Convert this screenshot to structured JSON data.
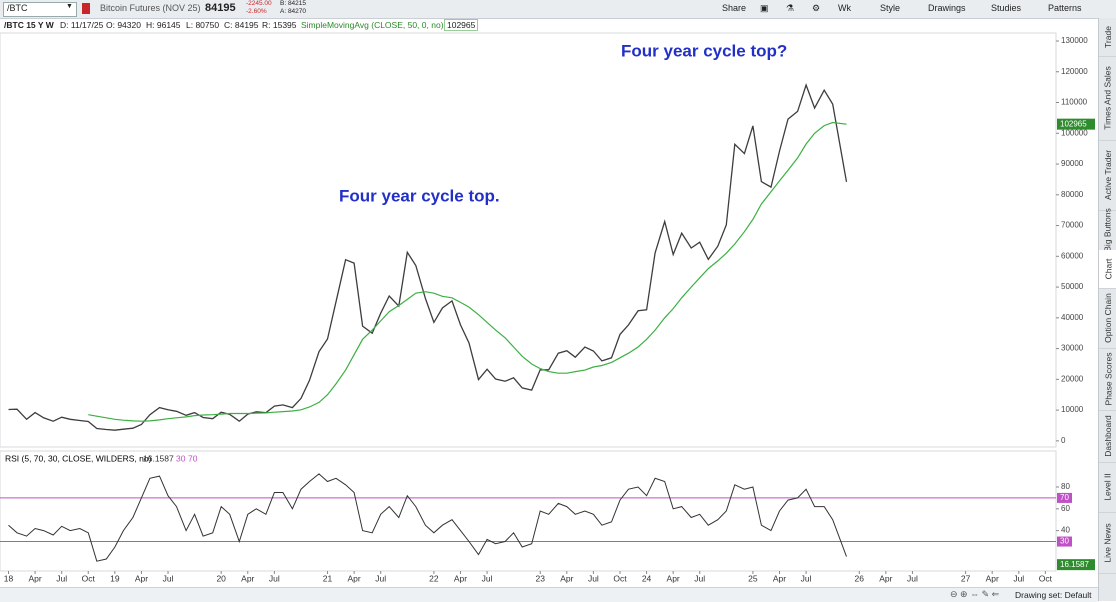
{
  "toolbar": {
    "symbol": "/BTC",
    "description": "Bitcoin Futures (NOV 25)",
    "change": "-2245.00",
    "change_pct": "-2.60%",
    "bid": "B: 84215",
    "ask": "A: 84270",
    "buttons": [
      "Share",
      "Wk",
      "Style",
      "Drawings",
      "Studies",
      "Patterns"
    ]
  },
  "header": {
    "date": "D: 11/17/25",
    "open": "O: 94320",
    "high": "H: 96145",
    "low": "L: 80750",
    "close": "C: 84195",
    "range": "R: 15395"
  },
  "side_tabs": [
    "Trade",
    "Times And Sales",
    "Active Trader",
    "Big Buttons",
    "Chart",
    "Option Chain",
    "Phase Scores",
    "Dashboard",
    "Level II",
    "Live News"
  ],
  "status": "Drawing set: Default",
  "chart_data": {
    "type": "line",
    "annotations": [
      "Four year cycle top.",
      "Four year cycle top?"
    ],
    "x": [
      2018.0,
      2018.08,
      2018.17,
      2018.25,
      2018.33,
      2018.42,
      2018.5,
      2018.58,
      2018.67,
      2018.75,
      2018.83,
      2018.92,
      2019.0,
      2019.08,
      2019.17,
      2019.25,
      2019.33,
      2019.42,
      2019.5,
      2019.58,
      2019.67,
      2019.75,
      2019.83,
      2019.92,
      2020.0,
      2020.08,
      2020.17,
      2020.25,
      2020.33,
      2020.42,
      2020.5,
      2020.58,
      2020.67,
      2020.75,
      2020.83,
      2020.92,
      2021.0,
      2021.08,
      2021.17,
      2021.25,
      2021.33,
      2021.42,
      2021.5,
      2021.58,
      2021.67,
      2021.75,
      2021.83,
      2021.92,
      2022.0,
      2022.08,
      2022.17,
      2022.25,
      2022.33,
      2022.42,
      2022.5,
      2022.58,
      2022.67,
      2022.75,
      2022.83,
      2022.92,
      2023.0,
      2023.08,
      2023.17,
      2023.25,
      2023.33,
      2023.42,
      2023.5,
      2023.58,
      2023.67,
      2023.75,
      2023.83,
      2023.92,
      2024.0,
      2024.08,
      2024.17,
      2024.25,
      2024.33,
      2024.42,
      2024.5,
      2024.58,
      2024.67,
      2024.75,
      2024.83,
      2024.92,
      2025.0,
      2025.08,
      2025.17,
      2025.25,
      2025.33,
      2025.42,
      2025.5,
      2025.58,
      2025.67,
      2025.75,
      2025.88
    ],
    "xlim": [
      2017.92,
      2027.85
    ],
    "xticks": [
      {
        "value": 2018,
        "label": "18"
      },
      {
        "value": 2018.25,
        "label": "Apr"
      },
      {
        "value": 2018.5,
        "label": "Jul"
      },
      {
        "value": 2018.75,
        "label": "Oct"
      },
      {
        "value": 2019,
        "label": "19"
      },
      {
        "value": 2019.25,
        "label": "Apr"
      },
      {
        "value": 2019.5,
        "label": "Jul"
      },
      {
        "value": 2020,
        "label": "20"
      },
      {
        "value": 2020.25,
        "label": "Apr"
      },
      {
        "value": 2020.5,
        "label": "Jul"
      },
      {
        "value": 2021,
        "label": "21"
      },
      {
        "value": 2021.25,
        "label": "Apr"
      },
      {
        "value": 2021.5,
        "label": "Jul"
      },
      {
        "value": 2022,
        "label": "22"
      },
      {
        "value": 2022.25,
        "label": "Apr"
      },
      {
        "value": 2022.5,
        "label": "Jul"
      },
      {
        "value": 2023,
        "label": "23"
      },
      {
        "value": 2023.25,
        "label": "Apr"
      },
      {
        "value": 2023.5,
        "label": "Jul"
      },
      {
        "value": 2023.75,
        "label": "Oct"
      },
      {
        "value": 2024,
        "label": "24"
      },
      {
        "value": 2024.25,
        "label": "Apr"
      },
      {
        "value": 2024.5,
        "label": "Jul"
      },
      {
        "value": 2025,
        "label": "25"
      },
      {
        "value": 2025.25,
        "label": "Apr"
      },
      {
        "value": 2025.5,
        "label": "Jul"
      },
      {
        "value": 2026,
        "label": "26"
      },
      {
        "value": 2026.25,
        "label": "Apr"
      },
      {
        "value": 2026.5,
        "label": "Jul"
      },
      {
        "value": 2027,
        "label": "27"
      },
      {
        "value": 2027.25,
        "label": "Apr"
      },
      {
        "value": 2027.5,
        "label": "Jul"
      },
      {
        "value": 2027.75,
        "label": "Oct"
      }
    ],
    "ylim": [
      -2000,
      132600
    ],
    "yticks": [
      0,
      10000,
      20000,
      30000,
      40000,
      50000,
      60000,
      70000,
      80000,
      90000,
      100000,
      110000,
      120000,
      130000
    ],
    "series": [
      {
        "name": "/BTC 15 Y W",
        "color": "#3d3d3d",
        "values": [
          10200,
          10300,
          7000,
          9200,
          7500,
          6400,
          7700,
          7000,
          6600,
          6300,
          4000,
          3700,
          3450,
          3800,
          4100,
          5300,
          8500,
          10800,
          10100,
          9600,
          8300,
          9200,
          7600,
          7200,
          9300,
          8600,
          6400,
          8700,
          9450,
          9150,
          11300,
          11700,
          10800,
          13800,
          19700,
          29000,
          33100,
          45200,
          58900,
          57800,
          37300,
          35000,
          41500,
          47100,
          43800,
          61300,
          57000,
          46300,
          38500,
          43200,
          45500,
          37700,
          31800,
          19900,
          23300,
          20100,
          19400,
          20500,
          17200,
          16500,
          23100,
          23100,
          28500,
          29300,
          27200,
          30500,
          29200,
          26000,
          27000,
          34600,
          37700,
          42300,
          42600,
          61100,
          71300,
          60600,
          67500,
          62700,
          64600,
          59000,
          63300,
          70200,
          96400,
          93400,
          102400,
          84300,
          82500,
          94200,
          104600,
          107100,
          115700,
          108200,
          114000,
          109500,
          84195
        ]
      },
      {
        "name": "SimpleMovingAvg (CLOSE, 50, 0, no)",
        "color": "#3cb043",
        "values": [
          null,
          null,
          null,
          null,
          null,
          null,
          null,
          null,
          null,
          8500,
          8000,
          7500,
          7000,
          6700,
          6500,
          6400,
          6500,
          6800,
          7200,
          7500,
          7800,
          8200,
          8400,
          8500,
          8700,
          8900,
          8900,
          8900,
          9000,
          9100,
          9300,
          9500,
          9700,
          10100,
          11000,
          12500,
          15000,
          18500,
          23000,
          28000,
          33000,
          36000,
          39000,
          42000,
          44000,
          46000,
          48000,
          48500,
          48000,
          47000,
          46500,
          45000,
          43500,
          41000,
          38500,
          36000,
          33500,
          30500,
          27500,
          25000,
          23500,
          22500,
          22000,
          22000,
          22500,
          23000,
          24000,
          24500,
          25500,
          27000,
          28500,
          30500,
          33000,
          36000,
          40000,
          43000,
          46500,
          50000,
          53000,
          56000,
          58500,
          61000,
          64000,
          68000,
          72000,
          77000,
          81000,
          84500,
          88000,
          92000,
          96500,
          100000,
          102500,
          103500,
          102965
        ]
      }
    ],
    "lower_panel": {
      "title": "RSI (5, 70, 30, CLOSE, WILDERS, no)",
      "ylim": [
        3,
        113
      ],
      "yticks": [
        40,
        60,
        80
      ],
      "reference_lines": [
        {
          "value": 70,
          "color": "#c04fc8"
        },
        {
          "value": 30,
          "color": "#c04fc8"
        }
      ],
      "series": [
        {
          "name": "RSI",
          "color": "#333333",
          "values": [
            45,
            38,
            35,
            42,
            40,
            36,
            44,
            40,
            42,
            38,
            12,
            14,
            25,
            40,
            52,
            70,
            88,
            90,
            72,
            62,
            40,
            55,
            35,
            38,
            62,
            55,
            30,
            55,
            60,
            55,
            75,
            75,
            60,
            78,
            85,
            92,
            85,
            88,
            82,
            75,
            40,
            38,
            55,
            62,
            52,
            72,
            62,
            45,
            38,
            45,
            50,
            40,
            30,
            18,
            32,
            28,
            30,
            38,
            25,
            28,
            58,
            55,
            65,
            62,
            55,
            58,
            55,
            45,
            48,
            68,
            78,
            80,
            72,
            88,
            85,
            60,
            62,
            52,
            55,
            45,
            50,
            58,
            82,
            78,
            80,
            45,
            40,
            58,
            68,
            70,
            78,
            62,
            62,
            50,
            16.1587
          ]
        }
      ]
    }
  }
}
